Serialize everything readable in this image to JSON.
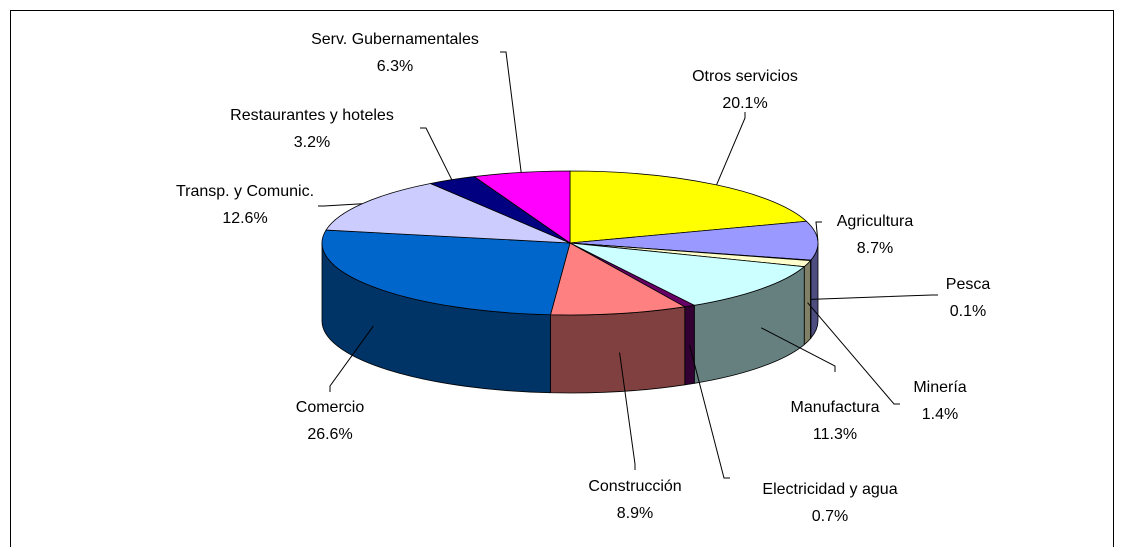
{
  "chart_data": {
    "type": "pie3d",
    "categories": [
      "Otros servicios",
      "Agricultura",
      "Pesca",
      "Minería",
      "Manufactura",
      "Electricidad y agua",
      "Construcción",
      "Comercio",
      "Transp. y Comunic.",
      "Restaurantes y hoteles",
      "Serv. Gubernamentales"
    ],
    "values": [
      20.1,
      8.7,
      0.1,
      1.4,
      11.3,
      0.7,
      8.9,
      26.6,
      12.6,
      3.2,
      6.3
    ],
    "value_labels": [
      "20.1%",
      "8.7%",
      "0.1%",
      "1.4%",
      "11.3%",
      "0.7%",
      "8.9%",
      "26.6%",
      "12.6%",
      "3.2%",
      "6.3%"
    ],
    "colors": [
      "#ffff00",
      "#9999ff",
      "#993366",
      "#ffffcc",
      "#ccffff",
      "#660066",
      "#ff8080",
      "#0066cc",
      "#ccccff",
      "#000080",
      "#ff00ff"
    ]
  }
}
